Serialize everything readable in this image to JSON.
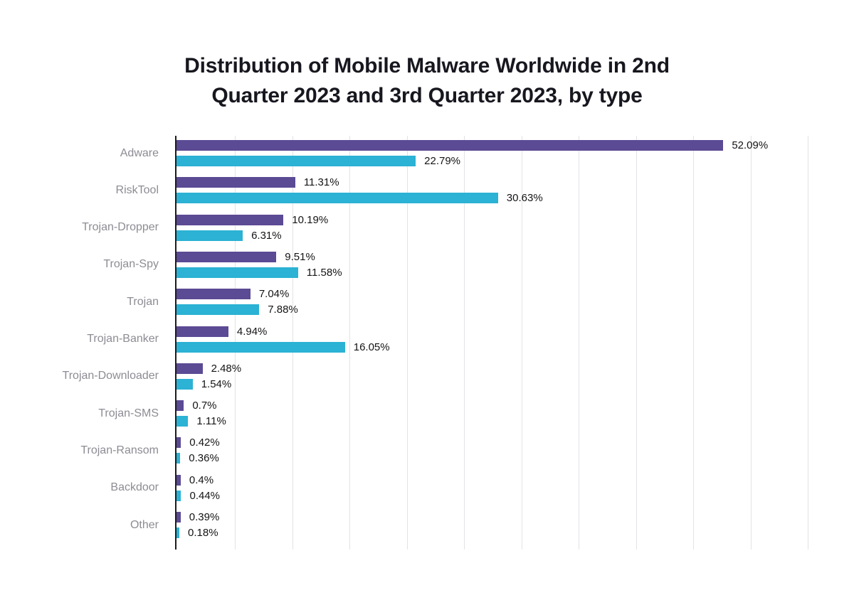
{
  "title": {
    "full": "Distribution of Mobile Malware Worldwide in 2nd Quarter 2023 and 3rd Quarter 2023, by type",
    "lines": [
      "Distribution of Mobile Malware Worldwide in 2nd",
      "Quarter 2023 and 3rd Quarter 2023, by type"
    ]
  },
  "colors": {
    "series_q2": "#5b4a94",
    "series_q3": "#2bb2d4",
    "title_text": "#17171f",
    "category_label": "#8c8c94",
    "value_label": "#141414",
    "gridline": "#e3e3e7",
    "axis": "#1c1c1c",
    "background": "#ffffff"
  },
  "chart_data": {
    "type": "bar",
    "orientation": "horizontal",
    "title": "Distribution of Mobile Malware Worldwide in 2nd Quarter 2023 and 3rd Quarter 2023, by type",
    "xlabel": "",
    "ylabel": "",
    "value_suffix": "%",
    "xlim": [
      0,
      62
    ],
    "grid": true,
    "legend_position": "none",
    "categories": [
      "Adware",
      "RiskTool",
      "Trojan-Dropper",
      "Trojan-Spy",
      "Trojan",
      "Trojan-Banker",
      "Trojan-Downloader",
      "Trojan-SMS",
      "Trojan-Ransom",
      "Backdoor",
      "Other"
    ],
    "series": [
      {
        "name": "2nd Quarter 2023",
        "color": "#5b4a94",
        "values": [
          52.09,
          11.31,
          10.19,
          9.51,
          7.04,
          4.94,
          2.48,
          0.7,
          0.42,
          0.4,
          0.39
        ],
        "labels": [
          "52.09%",
          "11.31%",
          "10.19%",
          "9.51%",
          "7.04%",
          "4.94%",
          "2.48%",
          "0.7%",
          "0.42%",
          "0.4%",
          "0.39%"
        ]
      },
      {
        "name": "3rd Quarter 2023",
        "color": "#2bb2d4",
        "values": [
          22.79,
          30.63,
          6.31,
          11.58,
          7.88,
          16.05,
          1.54,
          1.11,
          0.36,
          0.44,
          0.18
        ],
        "labels": [
          "22.79%",
          "30.63%",
          "6.31%",
          "11.58%",
          "7.88%",
          "16.05%",
          "1.54%",
          "1.11%",
          "0.36%",
          "0.44%",
          "0.18%"
        ]
      }
    ]
  }
}
